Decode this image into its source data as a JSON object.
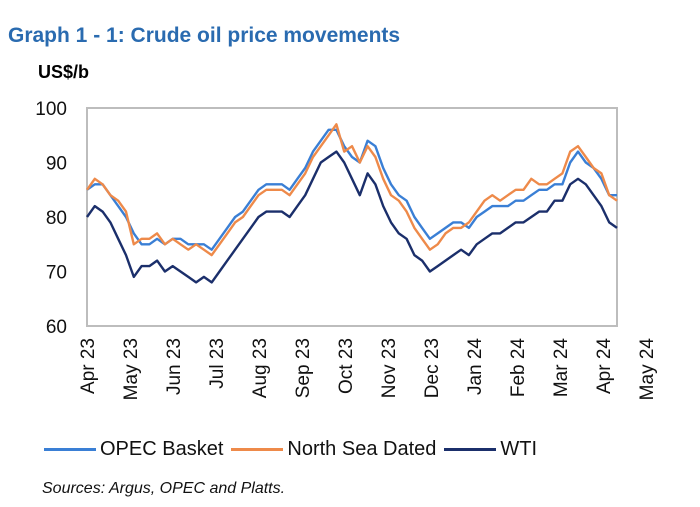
{
  "chart_data": {
    "type": "line",
    "title": "Graph 1 - 1: Crude oil price movements",
    "ylabel": "US$/b",
    "xlabel": "",
    "ylim": [
      60,
      100
    ],
    "yticks": [
      60,
      70,
      80,
      90,
      100
    ],
    "xlim_months": [
      0,
      12.33
    ],
    "x_tick_labels": [
      "Apr 23",
      "May 23",
      "Jun 23",
      "Jul 23",
      "Aug 23",
      "Sep 23",
      "Oct 23",
      "Nov 23",
      "Dec 23",
      "Jan 24",
      "Feb 24",
      "Mar 24",
      "Apr 24",
      "May 24"
    ],
    "grid": false,
    "legend_position": "bottom",
    "source": "Sources: Argus, OPEC and Platts.",
    "series": [
      {
        "name": "OPEC Basket",
        "color": "#3a7fd5",
        "values": [
          85,
          86,
          86,
          84,
          82,
          80,
          77,
          75,
          75,
          76,
          75,
          76,
          76,
          75,
          75,
          75,
          74,
          76,
          78,
          80,
          81,
          83,
          85,
          86,
          86,
          86,
          85,
          87,
          89,
          92,
          94,
          96,
          96,
          93,
          91,
          90,
          94,
          93,
          89,
          86,
          84,
          83,
          80,
          78,
          76,
          77,
          78,
          79,
          79,
          78,
          80,
          81,
          82,
          82,
          82,
          83,
          83,
          84,
          85,
          85,
          86,
          86,
          90,
          92,
          90,
          89,
          87,
          84,
          84
        ]
      },
      {
        "name": "North Sea Dated",
        "color": "#ee8a4a",
        "values": [
          85,
          87,
          86,
          84,
          83,
          81,
          75,
          76,
          76,
          77,
          75,
          76,
          75,
          74,
          75,
          74,
          73,
          75,
          77,
          79,
          80,
          82,
          84,
          85,
          85,
          85,
          84,
          86,
          88,
          91,
          93,
          95,
          97,
          92,
          93,
          90,
          93,
          91,
          87,
          84,
          83,
          81,
          78,
          76,
          74,
          75,
          77,
          78,
          78,
          79,
          81,
          83,
          84,
          83,
          84,
          85,
          85,
          87,
          86,
          86,
          87,
          88,
          92,
          93,
          91,
          89,
          88,
          84,
          83
        ]
      },
      {
        "name": "WTI",
        "color": "#1b2f6b",
        "values": [
          80,
          82,
          81,
          79,
          76,
          73,
          69,
          71,
          71,
          72,
          70,
          71,
          70,
          69,
          68,
          69,
          68,
          70,
          72,
          74,
          76,
          78,
          80,
          81,
          81,
          81,
          80,
          82,
          84,
          87,
          90,
          91,
          92,
          90,
          87,
          84,
          88,
          86,
          82,
          79,
          77,
          76,
          73,
          72,
          70,
          71,
          72,
          73,
          74,
          73,
          75,
          76,
          77,
          77,
          78,
          79,
          79,
          80,
          81,
          81,
          83,
          83,
          86,
          87,
          86,
          84,
          82,
          79,
          78
        ]
      }
    ]
  }
}
